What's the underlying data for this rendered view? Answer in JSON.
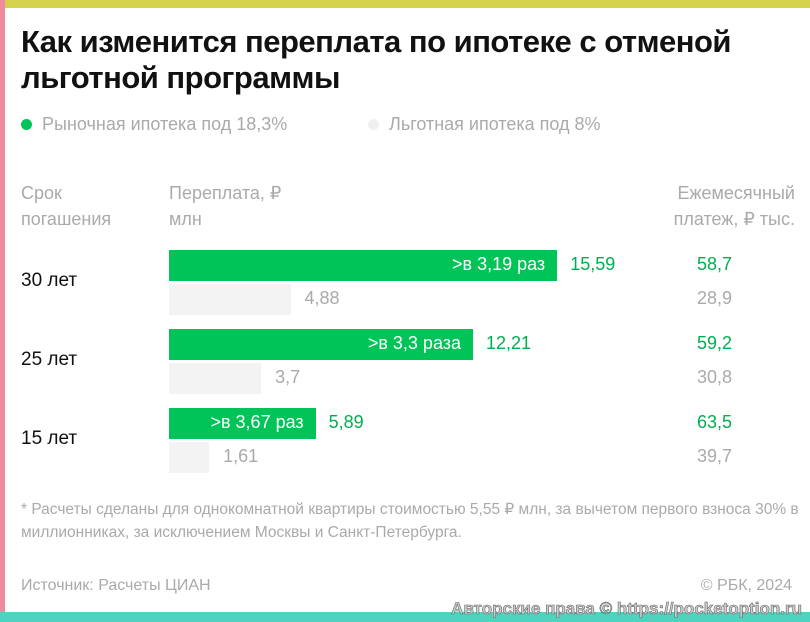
{
  "title": "Как изменится переплата по ипотеке с отменой льготной программы",
  "chart_data": {
    "type": "bar",
    "title": "Как изменится переплата по ипотеке с отменой льготной программы",
    "legend": [
      "Рыночная ипотека под 18,3%",
      "Льготная ипотека под 8%"
    ],
    "colors": [
      "#00c457",
      "#f3f3f3"
    ],
    "headers": {
      "term": "Срок погашения",
      "overpay": "Переплата, ₽ млн",
      "payment": "Ежемесячный платеж, ₽ тыс."
    },
    "categories": [
      "30 лет",
      "25 лет",
      "15 лет"
    ],
    "series": [
      {
        "name": "Рыночная ипотека под 18,3%",
        "values": [
          15.59,
          12.21,
          5.89
        ],
        "labels": [
          "15,59",
          "12,21",
          "5,89"
        ],
        "ratio_labels": [
          ">в 3,19 раз",
          ">в 3,3 раза",
          ">в 3,67 раз"
        ],
        "payments": [
          "58,7",
          "59,2",
          "63,5"
        ]
      },
      {
        "name": "Льготная ипотека под 8%",
        "values": [
          4.88,
          3.7,
          1.61
        ],
        "labels": [
          "4,88",
          "3,7",
          "1,61"
        ],
        "payments": [
          "28,9",
          "30,8",
          "39,7"
        ]
      }
    ]
  },
  "note": "* Расчеты сделаны для однокомнатной квартиры стоимостью 5,55 ₽ млн, за вычетом первого взноса 30% в миллионниках, за исключением Москвы и Санкт-Петербурга.",
  "source": "Источник: Расчеты ЦИАН",
  "copyright": "© РБК, 2024",
  "watermark": "Авторские права © https://pocketoption.ru"
}
